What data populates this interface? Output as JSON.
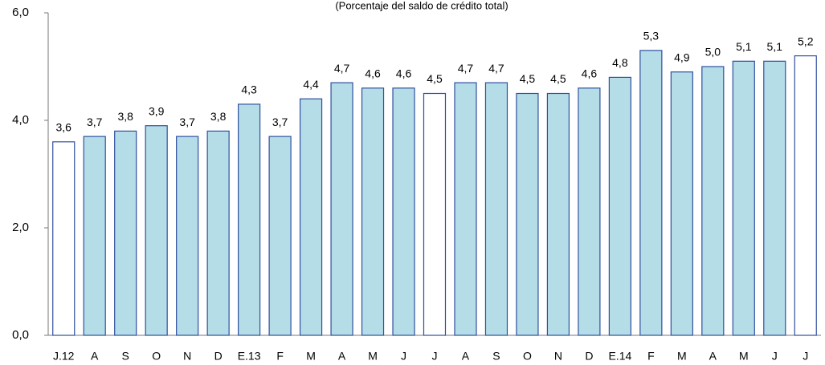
{
  "chart_data": {
    "type": "bar",
    "subtitle": "(Porcentaje del saldo de crédito total)",
    "categories": [
      "J.12",
      "A",
      "S",
      "O",
      "N",
      "D",
      "E.13",
      "F",
      "M",
      "A",
      "M",
      "J",
      "J",
      "A",
      "S",
      "O",
      "N",
      "D",
      "E.14",
      "F",
      "M",
      "A",
      "M",
      "J",
      "J"
    ],
    "values": [
      3.6,
      3.7,
      3.8,
      3.9,
      3.7,
      3.8,
      4.3,
      3.7,
      4.4,
      4.7,
      4.6,
      4.6,
      4.5,
      4.7,
      4.7,
      4.5,
      4.5,
      4.6,
      4.8,
      5.3,
      4.9,
      5.0,
      5.1,
      5.1,
      5.2
    ],
    "value_labels": [
      "3,6",
      "3,7",
      "3,8",
      "3,9",
      "3,7",
      "3,8",
      "4,3",
      "3,7",
      "4,4",
      "4,7",
      "4,6",
      "4,6",
      "4,5",
      "4,7",
      "4,7",
      "4,5",
      "4,5",
      "4,6",
      "4,8",
      "5,3",
      "4,9",
      "5,0",
      "5,1",
      "5,1",
      "5,2"
    ],
    "colors": [
      "#ffffff",
      "#b5dde8",
      "#b5dde8",
      "#b5dde8",
      "#b5dde8",
      "#b5dde8",
      "#b5dde8",
      "#b5dde8",
      "#b5dde8",
      "#b5dde8",
      "#b5dde8",
      "#b5dde8",
      "#ffffff",
      "#b5dde8",
      "#b5dde8",
      "#b5dde8",
      "#b5dde8",
      "#b5dde8",
      "#b5dde8",
      "#b5dde8",
      "#b5dde8",
      "#b5dde8",
      "#b5dde8",
      "#b5dde8",
      "#ffffff"
    ],
    "edge_color": "#2f4f9e",
    "ylim": [
      0,
      6
    ],
    "yticks": [
      {
        "value": 0,
        "label": "0,0"
      },
      {
        "value": 2,
        "label": "2,0"
      },
      {
        "value": 4,
        "label": "4,0"
      },
      {
        "value": 6,
        "label": "6,0"
      }
    ],
    "grid": false
  }
}
